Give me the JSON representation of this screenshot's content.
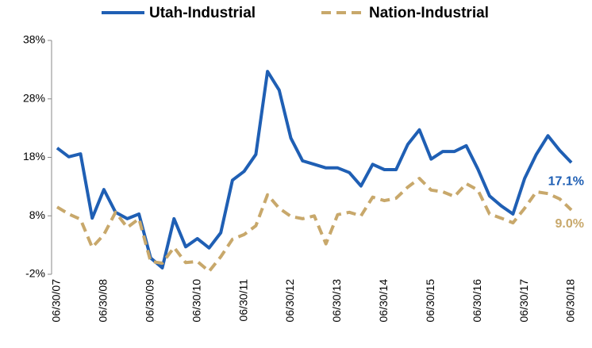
{
  "chart_data": {
    "type": "line",
    "categories": [
      "06/30/07",
      null,
      null,
      null,
      "06/30/08",
      null,
      null,
      null,
      "06/30/09",
      null,
      null,
      null,
      "06/30/10",
      null,
      null,
      null,
      "06/30/11",
      null,
      null,
      null,
      "06/30/12",
      null,
      null,
      null,
      "06/30/13",
      null,
      null,
      null,
      "06/30/14",
      null,
      null,
      null,
      "06/30/15",
      null,
      null,
      null,
      "06/30/16",
      null,
      null,
      null,
      "06/30/17",
      null,
      null,
      null,
      "06/30/18"
    ],
    "series": [
      {
        "name": "Utah-Industrial",
        "color": "#1f5fb4",
        "style": "solid",
        "values": [
          19.6,
          18.1,
          18.6,
          7.6,
          12.5,
          8.6,
          7.5,
          8.3,
          0.8,
          -0.9,
          7.5,
          2.7,
          4.1,
          2.5,
          5.1,
          14.1,
          15.6,
          18.5,
          32.7,
          29.5,
          21.3,
          17.4,
          16.8,
          16.2,
          16.2,
          15.4,
          13.1,
          16.8,
          15.9,
          15.9,
          20.2,
          22.7,
          17.7,
          19.0,
          19.0,
          20.0,
          16.0,
          11.4,
          9.7,
          8.3,
          14.4,
          18.5,
          21.7,
          19.2,
          17.1
        ],
        "value_labels": [
          null,
          null,
          null,
          null,
          null,
          null,
          null,
          null,
          null,
          null,
          null,
          null,
          null,
          null,
          null,
          null,
          null,
          null,
          null,
          null,
          null,
          null,
          null,
          null,
          null,
          null,
          null,
          null,
          null,
          null,
          null,
          null,
          null,
          null,
          null,
          null,
          null,
          null,
          null,
          null,
          null,
          null,
          null,
          null,
          "17.1%"
        ]
      },
      {
        "name": "Nation-Industrial",
        "color": "#c8a86b",
        "style": "dashed",
        "values": [
          9.5,
          8.3,
          7.4,
          2.6,
          4.8,
          8.6,
          6.0,
          7.5,
          0.2,
          -0.1,
          2.6,
          0.0,
          0.2,
          -1.5,
          1.0,
          4.0,
          4.8,
          6.3,
          11.6,
          9.3,
          7.9,
          7.5,
          8.0,
          3.2,
          8.2,
          8.6,
          8.0,
          11.2,
          10.6,
          11.0,
          12.9,
          14.4,
          12.4,
          12.1,
          11.3,
          13.5,
          12.4,
          8.3,
          7.6,
          6.8,
          9.3,
          12.1,
          11.8,
          10.9,
          9.0
        ],
        "value_labels": [
          null,
          null,
          null,
          null,
          null,
          null,
          null,
          null,
          null,
          null,
          null,
          null,
          null,
          null,
          null,
          null,
          null,
          null,
          null,
          null,
          null,
          null,
          null,
          null,
          null,
          null,
          null,
          null,
          null,
          null,
          null,
          null,
          null,
          null,
          null,
          null,
          null,
          null,
          null,
          null,
          null,
          null,
          null,
          null,
          "9.0%"
        ]
      }
    ],
    "ylim": [
      -2,
      38
    ],
    "yticks": [
      {
        "value": -2,
        "label": "-2%"
      },
      {
        "value": 8,
        "label": "8%"
      },
      {
        "value": 18,
        "label": "18%"
      },
      {
        "value": 28,
        "label": "28%"
      },
      {
        "value": 38,
        "label": "38%"
      }
    ],
    "legend": "top"
  }
}
